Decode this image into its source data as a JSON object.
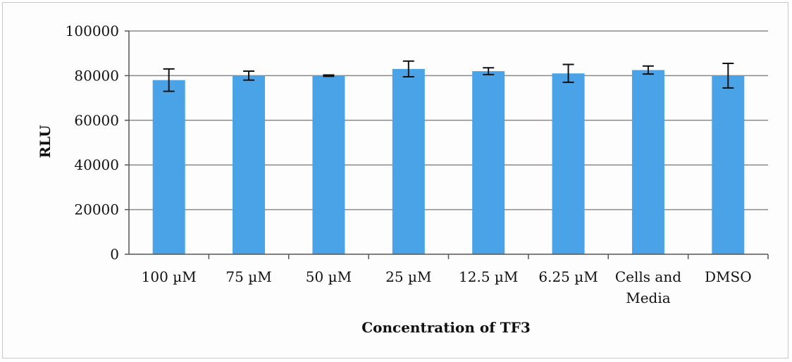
{
  "chart_data": {
    "type": "bar",
    "categories": [
      [
        "100 µM"
      ],
      [
        "75 µM"
      ],
      [
        "50 µM"
      ],
      [
        "25 µM"
      ],
      [
        "12.5 µM"
      ],
      [
        "6.25 µM"
      ],
      [
        "Cells and",
        "Media"
      ],
      [
        "DMSO"
      ]
    ],
    "values": [
      78000,
      80000,
      80000,
      83000,
      82000,
      81000,
      82500,
      80000
    ],
    "error": [
      5000,
      2000,
      300,
      3500,
      1500,
      4000,
      1800,
      5500
    ],
    "xlabel": "Concentration of TF3",
    "ylabel": "RLU",
    "ylim": [
      0,
      100000
    ],
    "yticks": [
      0,
      20000,
      40000,
      60000,
      80000,
      100000
    ],
    "grid": true,
    "bar_color": "#4aa3e6"
  }
}
